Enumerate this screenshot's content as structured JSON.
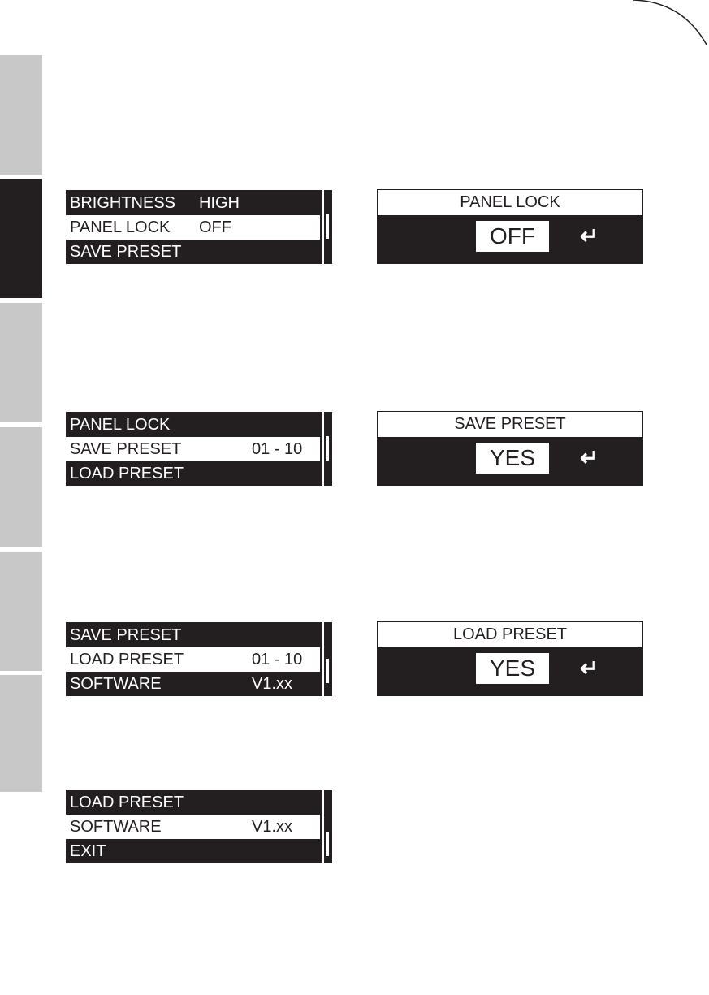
{
  "colors": {
    "lcd_dark": "#231f20",
    "tab_gray": "#c8c8c8",
    "tab_active": "#231f20"
  },
  "menus": [
    {
      "rows": [
        {
          "label": "BRIGHTNESS",
          "value": "HIGH"
        },
        {
          "label": "PANEL LOCK",
          "value": "OFF"
        },
        {
          "label": "SAVE PRESET",
          "value": ""
        }
      ],
      "selected": 1
    },
    {
      "rows": [
        {
          "label": "PANEL LOCK",
          "value": ""
        },
        {
          "label": "SAVE PRESET",
          "value": "01 - 10"
        },
        {
          "label": "LOAD PRESET",
          "value": ""
        }
      ],
      "selected": 1
    },
    {
      "rows": [
        {
          "label": "SAVE PRESET",
          "value": ""
        },
        {
          "label": "LOAD PRESET",
          "value": "01 - 10"
        },
        {
          "label": "SOFTWARE",
          "value": "V1.xx"
        }
      ],
      "selected": 1
    },
    {
      "rows": [
        {
          "label": "LOAD PRESET",
          "value": ""
        },
        {
          "label": "SOFTWARE",
          "value": "V1.xx"
        },
        {
          "label": "EXIT",
          "value": ""
        }
      ],
      "selected": 1
    }
  ],
  "dialogs": [
    {
      "title": "PANEL LOCK",
      "value": "OFF",
      "icon": "enter-icon"
    },
    {
      "title": "SAVE PRESET",
      "value": "YES",
      "icon": "enter-icon"
    },
    {
      "title": "LOAD PRESET",
      "value": "YES",
      "icon": "enter-icon"
    }
  ],
  "enter_glyph": "↵"
}
